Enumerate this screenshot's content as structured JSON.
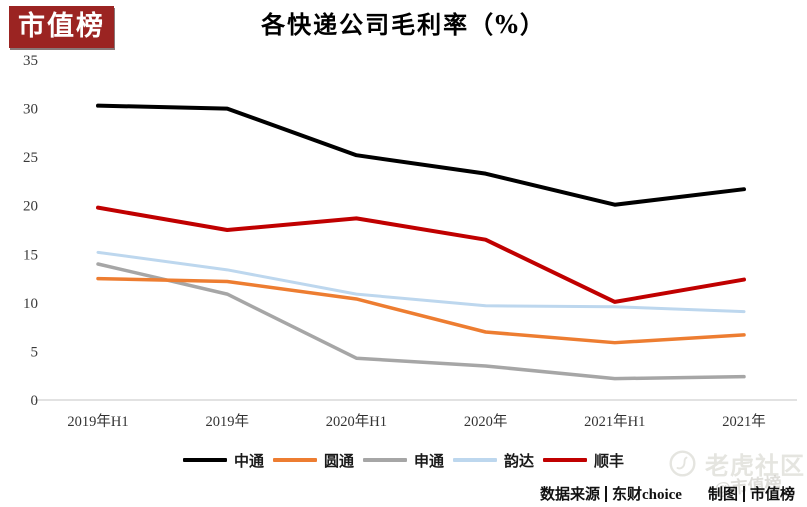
{
  "logo": {
    "text": "市值榜"
  },
  "header": {
    "title": "各快递公司毛利率（%）"
  },
  "chart_data": {
    "type": "line",
    "title": "各快递公司毛利率（%）",
    "categories": [
      "2019年H1",
      "2019年",
      "2020年H1",
      "2020年",
      "2021年H1",
      "2021年"
    ],
    "series": [
      {
        "name": "中通",
        "color": "#000000",
        "line_width": 4,
        "z": 5,
        "values": [
          30.3,
          30.0,
          25.2,
          23.3,
          20.1,
          21.7
        ]
      },
      {
        "name": "圆通",
        "color": "#ED7D31",
        "line_width": 3.5,
        "z": 3,
        "values": [
          12.5,
          12.2,
          10.4,
          7.0,
          5.9,
          6.7
        ]
      },
      {
        "name": "申通",
        "color": "#A6A6A6",
        "line_width": 3.5,
        "z": 2,
        "values": [
          14.0,
          10.9,
          4.3,
          3.5,
          2.2,
          2.4
        ]
      },
      {
        "name": "韵达",
        "color": "#BDD7EE",
        "line_width": 3,
        "z": 1,
        "values": [
          15.2,
          13.4,
          10.9,
          9.7,
          9.6,
          9.1
        ]
      },
      {
        "name": "顺丰",
        "color": "#C00000",
        "line_width": 4,
        "z": 4,
        "values": [
          19.8,
          17.5,
          18.7,
          16.5,
          10.1,
          12.4
        ]
      }
    ],
    "xlabel": "",
    "ylabel": "",
    "ylim": [
      0,
      35
    ],
    "yticks": [
      0,
      5,
      10,
      15,
      20,
      25,
      30,
      35
    ],
    "grid": false,
    "legend_position": "bottom",
    "axis_color": "#D9D9D9"
  },
  "footer": {
    "source_label": "数据来源",
    "source_value": "东财choice",
    "credit_label": "制图",
    "credit_value": "市值榜"
  },
  "watermarks": {
    "community": "老虎社区",
    "page_mark": "@市值榜"
  }
}
